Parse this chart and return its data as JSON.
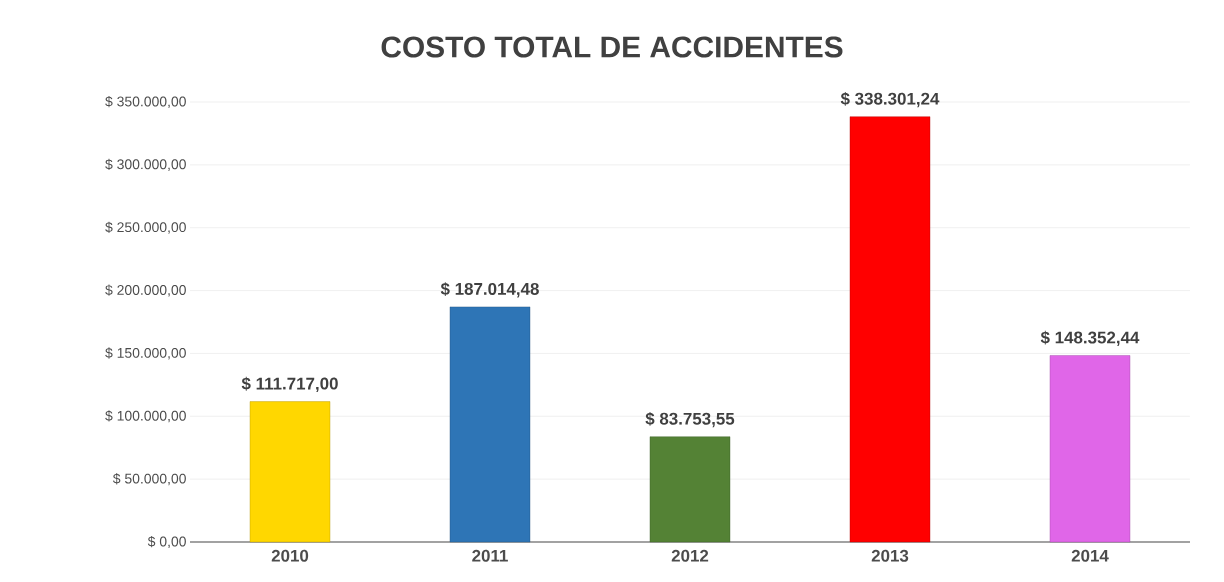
{
  "chart_data": {
    "type": "bar",
    "title": "COSTO TOTAL DE ACCIDENTES",
    "categories": [
      "2010",
      "2011",
      "2012",
      "2013",
      "2014"
    ],
    "values": [
      111717.0,
      187014.48,
      83753.55,
      338301.24,
      148352.44
    ],
    "value_labels": [
      "$ 111.717,00",
      "$ 187.014,48",
      "$ 83.753,55",
      "$ 338.301,24",
      "$ 148.352,44"
    ],
    "colors": [
      "#ffd700",
      "#2e75b6",
      "#548235",
      "#ff0000",
      "#e066e8"
    ],
    "ylim": [
      0,
      350000
    ],
    "yticks": [
      {
        "value": 0,
        "label": "$ 0,00"
      },
      {
        "value": 50000,
        "label": "$ 50.000,00"
      },
      {
        "value": 100000,
        "label": "$ 100.000,00"
      },
      {
        "value": 150000,
        "label": "$ 150.000,00"
      },
      {
        "value": 200000,
        "label": "$ 200.000,00"
      },
      {
        "value": 250000,
        "label": "$ 250.000,00"
      },
      {
        "value": 300000,
        "label": "$ 300.000,00"
      },
      {
        "value": 350000,
        "label": "$ 350.000,00"
      }
    ],
    "grid": "y"
  }
}
